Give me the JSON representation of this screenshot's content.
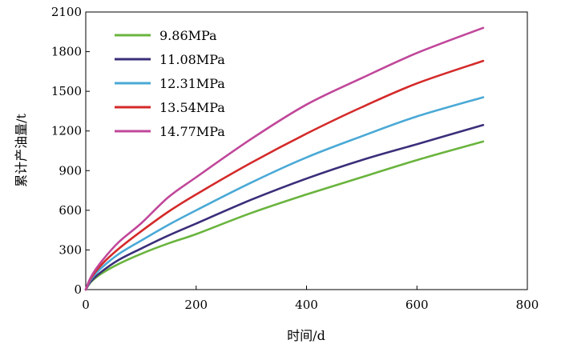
{
  "chart_data": {
    "type": "line",
    "title": "",
    "xlabel": "时间/d",
    "ylabel": "累计产油量/t",
    "xlim": [
      0,
      800
    ],
    "ylim": [
      0,
      2100
    ],
    "xticks": [
      0,
      200,
      400,
      600,
      800
    ],
    "yticks": [
      0,
      300,
      600,
      900,
      1200,
      1500,
      1800,
      2100
    ],
    "grid": false,
    "legend_position": "top-left",
    "series": [
      {
        "name": "9.86MPa",
        "color": "#6ab43e",
        "x": [
          0,
          10,
          30,
          60,
          100,
          150,
          200,
          300,
          400,
          500,
          600,
          720
        ],
        "y": [
          0,
          60,
          125,
          195,
          270,
          350,
          420,
          580,
          720,
          850,
          980,
          1120
        ]
      },
      {
        "name": "11.08MPa",
        "color": "#3a2f7a",
        "x": [
          0,
          10,
          30,
          60,
          100,
          150,
          200,
          300,
          400,
          500,
          600,
          720
        ],
        "y": [
          0,
          65,
          140,
          225,
          310,
          410,
          500,
          680,
          840,
          980,
          1100,
          1245
        ]
      },
      {
        "name": "12.31MPa",
        "color": "#4aa9d6",
        "x": [
          0,
          10,
          30,
          60,
          100,
          150,
          200,
          300,
          400,
          500,
          600,
          720
        ],
        "y": [
          0,
          80,
          170,
          270,
          370,
          490,
          600,
          810,
          1000,
          1160,
          1310,
          1455
        ]
      },
      {
        "name": "13.54MPa",
        "color": "#d42a2a",
        "x": [
          0,
          10,
          30,
          60,
          100,
          150,
          200,
          300,
          400,
          500,
          600,
          720
        ],
        "y": [
          0,
          90,
          195,
          310,
          440,
          590,
          720,
          960,
          1180,
          1380,
          1560,
          1730
        ]
      },
      {
        "name": "14.77MPa",
        "color": "#c0479a",
        "x": [
          0,
          10,
          30,
          60,
          100,
          150,
          200,
          300,
          400,
          500,
          600,
          720
        ],
        "y": [
          0,
          100,
          220,
          360,
          500,
          700,
          850,
          1140,
          1400,
          1600,
          1790,
          1980
        ]
      }
    ]
  }
}
